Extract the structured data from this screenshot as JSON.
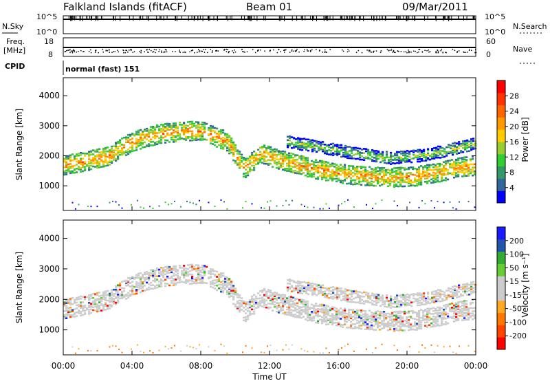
{
  "header": {
    "station": "Falkland Islands (fitACF)",
    "beam": "Beam 01",
    "date": "09/Mar/2011"
  },
  "strip": {
    "left_labels": {
      "nsky": "N.Sky",
      "freq": "Freq.",
      "freq_unit": "[MHz]",
      "cpid": "CPID"
    },
    "right_labels": {
      "nsearch": "N.Search",
      "nave": "Nave"
    },
    "nsky_ticks": [
      "10^5",
      "10^0"
    ],
    "nsearch_ticks": [
      "10^5",
      "10^0"
    ],
    "freq_ticks": [
      "18",
      "8"
    ],
    "nave_ticks": [
      "60",
      "0"
    ],
    "cpid_text": "normal (fast) 151"
  },
  "colors": {
    "power": [
      "#0000ff",
      "#336699",
      "#339966",
      "#33cc33",
      "#99cc33",
      "#ffcc00",
      "#ff9900",
      "#ff6600",
      "#ff3300",
      "#ff0000"
    ],
    "velocity": [
      "#1a1aff",
      "#2255aa",
      "#33aa33",
      "#66cc33",
      "#cccccc",
      "#cccccc",
      "#ffaa22",
      "#ff7700",
      "#ff4400",
      "#ff0000"
    ]
  },
  "chart_data": [
    {
      "type": "heatmap",
      "name": "power",
      "ylabel": "Slant Range [km]",
      "xlabel": "",
      "x_range": [
        "00:00",
        "24:00"
      ],
      "ylim": [
        180,
        4600
      ],
      "y_ticks": [
        1000,
        2000,
        3000,
        4000
      ],
      "colorbar": {
        "label": "Power [dB]",
        "range": [
          0,
          32
        ],
        "ticks": [
          4,
          8,
          12,
          16,
          20,
          24,
          28
        ]
      },
      "bands": [
        {
          "x": [
            0.0,
            2.5,
            4.0,
            5.5,
            7.0,
            8.0,
            9.5,
            10.5,
            11.5,
            12.5,
            13.5,
            14.5,
            16.0,
            17.5,
            19.0,
            20.5,
            22.0,
            23.0,
            24.0
          ],
          "y_center": [
            1700,
            2000,
            2500,
            2750,
            2850,
            2850,
            2500,
            1600,
            2100,
            1900,
            1750,
            1600,
            1450,
            1350,
            1300,
            1350,
            1500,
            1650,
            1700
          ],
          "halfwidth": 300,
          "power_db": 22
        },
        {
          "x": [
            13.0,
            15.0,
            17.0,
            19.0,
            21.0,
            23.0,
            24.0
          ],
          "y_center": [
            2500,
            2300,
            2100,
            1950,
            2050,
            2300,
            2450
          ],
          "halfwidth": 180,
          "power_db": 14
        }
      ]
    },
    {
      "type": "heatmap",
      "name": "velocity",
      "ylabel": "Slant Range [km]",
      "xlabel": "Time UT",
      "x_ticks": [
        "00:00",
        "04:00",
        "08:00",
        "12:00",
        "16:00",
        "20:00",
        "00:00"
      ],
      "ylim": [
        180,
        4600
      ],
      "y_ticks": [
        1000,
        2000,
        3000,
        4000
      ],
      "colorbar": {
        "label": "Velocity [m s⁻¹]",
        "ticks": [
          200,
          100,
          50,
          15,
          -15,
          -50,
          -100,
          -200
        ]
      },
      "dominant_velocity_ms": [
        -15,
        15
      ]
    }
  ]
}
